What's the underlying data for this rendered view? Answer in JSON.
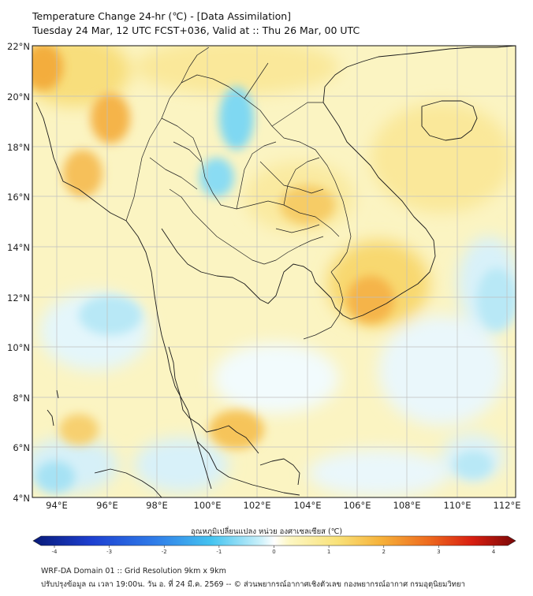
{
  "header": {
    "title_line1": "Temperature Change 24-hr (℃) - [Data Assimilation]",
    "title_line2": "Tuesday 24 Mar, 12 UTC FCST+036, Valid at :: Thu 26 Mar, 00 UTC"
  },
  "map": {
    "lat_labels": [
      "22°N",
      "20°N",
      "18°N",
      "16°N",
      "14°N",
      "12°N",
      "10°N",
      "8°N",
      "6°N",
      "4°N"
    ],
    "lon_labels": [
      "94°E",
      "96°E",
      "98°E",
      "100°E",
      "102°E",
      "104°E",
      "106°E",
      "108°E",
      "110°E",
      "112°E"
    ],
    "colors": {
      "warm_yellow": "#fbf0a8",
      "orange": "#f7c65a",
      "deep_orange": "#f0a23a",
      "light_cyan": "#d6f2fb",
      "cyan": "#7fd8f2",
      "white": "#ffffff",
      "grid": "#bbbbbb",
      "border": "#222222"
    }
  },
  "colorbar": {
    "title": "อุณหภูมิเปลี่ยนแปลง หน่วย องศาเซลเซียส (℃)",
    "ticks": [
      "-4",
      "-3",
      "-2",
      "-1",
      "0",
      "1",
      "2",
      "3",
      "4"
    ],
    "min": -4,
    "max": 4
  },
  "footer": {
    "line1": "WRF-DA Domain 01 :: Grid Resolution 9km x 9km",
    "line2": "ปรับปรุงข้อมูล ณ เวลา 19:00น. วัน อ. ที่ 24 มี.ค. 2569 -- © ส่วนพยากรณ์อากาศเชิงตัวเลข กองพยากรณ์อากาศ กรมอุตุนิยมวิทยา"
  }
}
